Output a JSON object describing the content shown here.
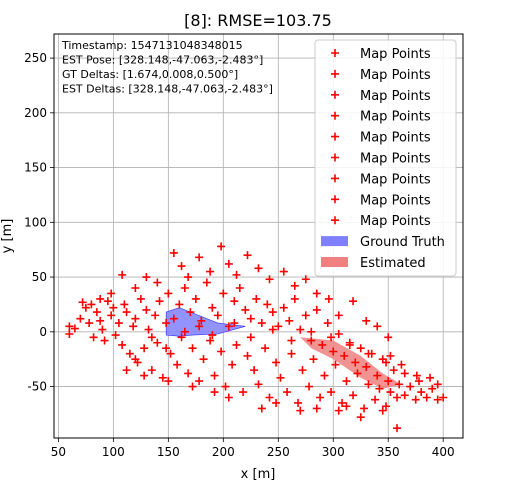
{
  "chart_data": {
    "type": "scatter",
    "title": "[8]: RMSE=103.75",
    "xlabel": "x [m]",
    "ylabel": "y [m]",
    "xlim": [
      46,
      418
    ],
    "ylim": [
      -97,
      272
    ],
    "xticks": [
      50,
      100,
      150,
      200,
      250,
      300,
      350,
      400
    ],
    "yticks": [
      -50,
      0,
      50,
      100,
      150,
      200,
      250
    ],
    "grid": true,
    "info_lines": [
      "Timestamp: 1547131048348015",
      "EST Pose: [328.148,-47.063,-2.483°]",
      "GT Deltas: [1.674,0.008,0.500°]",
      "EST Deltas: [328.148,-47.063,-2.483°]"
    ],
    "legend": {
      "position": "upper-right",
      "entries": [
        {
          "label": "Map Points",
          "marker": "+",
          "color": "#ff0000"
        },
        {
          "label": "Map Points",
          "marker": "+",
          "color": "#ff0000"
        },
        {
          "label": "Map Points",
          "marker": "+",
          "color": "#ff0000"
        },
        {
          "label": "Map Points",
          "marker": "+",
          "color": "#ff0000"
        },
        {
          "label": "Map Points",
          "marker": "+",
          "color": "#ff0000"
        },
        {
          "label": "Map Points",
          "marker": "+",
          "color": "#ff0000"
        },
        {
          "label": "Map Points",
          "marker": "+",
          "color": "#ff0000"
        },
        {
          "label": "Map Points",
          "marker": "+",
          "color": "#ff0000"
        },
        {
          "label": "Map Points",
          "marker": "+",
          "color": "#ff0000"
        },
        {
          "label": "Ground Truth",
          "marker": "patch",
          "color": "#8080ff"
        },
        {
          "label": "Estimated",
          "marker": "patch",
          "color": "#f08080"
        }
      ]
    },
    "series": [
      {
        "name": "Map Points",
        "color": "#ff0000",
        "points": [
          [
            60,
            5
          ],
          [
            65,
            3
          ],
          [
            70,
            12
          ],
          [
            72,
            27
          ],
          [
            75,
            22
          ],
          [
            78,
            8
          ],
          [
            80,
            25
          ],
          [
            82,
            -5
          ],
          [
            85,
            18
          ],
          [
            88,
            10
          ],
          [
            90,
            2
          ],
          [
            92,
            -8
          ],
          [
            95,
            28
          ],
          [
            98,
            15
          ],
          [
            100,
            22
          ],
          [
            102,
            -3
          ],
          [
            105,
            8
          ],
          [
            108,
            -12
          ],
          [
            110,
            25
          ],
          [
            112,
            18
          ],
          [
            115,
            -20
          ],
          [
            118,
            5
          ],
          [
            120,
            12
          ],
          [
            122,
            -28
          ],
          [
            125,
            30
          ],
          [
            128,
            -15
          ],
          [
            130,
            20
          ],
          [
            132,
            2
          ],
          [
            135,
            -35
          ],
          [
            138,
            15
          ],
          [
            140,
            -10
          ],
          [
            142,
            28
          ],
          [
            145,
            -42
          ],
          [
            148,
            8
          ],
          [
            150,
            35
          ],
          [
            152,
            -20
          ],
          [
            155,
            12
          ],
          [
            158,
            -30
          ],
          [
            160,
            25
          ],
          [
            162,
            -5
          ],
          [
            165,
            40
          ],
          [
            168,
            -38
          ],
          [
            170,
            18
          ],
          [
            172,
            -15
          ],
          [
            175,
            30
          ],
          [
            178,
            -45
          ],
          [
            180,
            10
          ],
          [
            182,
            -25
          ],
          [
            185,
            45
          ],
          [
            188,
            -8
          ],
          [
            190,
            22
          ],
          [
            192,
            -40
          ],
          [
            195,
            15
          ],
          [
            198,
            -18
          ],
          [
            200,
            35
          ],
          [
            202,
            -50
          ],
          [
            205,
            5
          ],
          [
            208,
            -30
          ],
          [
            210,
            28
          ],
          [
            212,
            -12
          ],
          [
            215,
            40
          ],
          [
            218,
            -55
          ],
          [
            220,
            20
          ],
          [
            222,
            -22
          ],
          [
            225,
            12
          ],
          [
            228,
            -35
          ],
          [
            230,
            30
          ],
          [
            232,
            -48
          ],
          [
            235,
            8
          ],
          [
            238,
            -15
          ],
          [
            240,
            25
          ],
          [
            242,
            -60
          ],
          [
            245,
            18
          ],
          [
            248,
            -28
          ],
          [
            250,
            5
          ],
          [
            252,
            -42
          ],
          [
            255,
            22
          ],
          [
            258,
            -55
          ],
          [
            260,
            10
          ],
          [
            262,
            -20
          ],
          [
            265,
            30
          ],
          [
            268,
            -65
          ],
          [
            270,
            2
          ],
          [
            272,
            -35
          ],
          [
            275,
            15
          ],
          [
            278,
            -50
          ],
          [
            280,
            -8
          ],
          [
            282,
            -25
          ],
          [
            285,
            20
          ],
          [
            288,
            -60
          ],
          [
            290,
            -12
          ],
          [
            292,
            -40
          ],
          [
            295,
            8
          ],
          [
            298,
            -55
          ],
          [
            300,
            -18
          ],
          [
            302,
            -30
          ],
          [
            305,
            -2
          ],
          [
            308,
            -65
          ],
          [
            310,
            -22
          ],
          [
            312,
            -45
          ],
          [
            315,
            -10
          ],
          [
            318,
            -58
          ],
          [
            320,
            -28
          ],
          [
            322,
            -38
          ],
          [
            325,
            -15
          ],
          [
            328,
            -70
          ],
          [
            330,
            -32
          ],
          [
            332,
            -48
          ],
          [
            335,
            -20
          ],
          [
            338,
            -62
          ],
          [
            340,
            -40
          ],
          [
            342,
            -52
          ],
          [
            345,
            -25
          ],
          [
            348,
            -68
          ],
          [
            350,
            -45
          ],
          [
            352,
            -55
          ],
          [
            355,
            -35
          ],
          [
            358,
            -60
          ],
          [
            360,
            -48
          ],
          [
            365,
            -58
          ],
          [
            370,
            -50
          ],
          [
            375,
            -62
          ],
          [
            380,
            -55
          ],
          [
            385,
            -60
          ],
          [
            390,
            -52
          ],
          [
            395,
            -62
          ],
          [
            400,
            -60
          ],
          [
            395,
            -48
          ],
          [
            388,
            -42
          ],
          [
            376,
            -40
          ],
          [
            362,
            -30
          ],
          [
            352,
            -22
          ],
          [
            155,
            72
          ],
          [
            162,
            60
          ],
          [
            168,
            50
          ],
          [
            178,
            68
          ],
          [
            188,
            55
          ],
          [
            198,
            78
          ],
          [
            205,
            62
          ],
          [
            212,
            52
          ],
          [
            222,
            70
          ],
          [
            232,
            58
          ],
          [
            242,
            48
          ],
          [
            255,
            55
          ],
          [
            265,
            42
          ],
          [
            275,
            48
          ],
          [
            285,
            35
          ],
          [
            296,
            30
          ],
          [
            305,
            15
          ],
          [
            318,
            28
          ],
          [
            330,
            10
          ],
          [
            340,
            5
          ],
          [
            350,
            -5
          ],
          [
            305,
            -72
          ],
          [
            325,
            -78
          ],
          [
            345,
            -72
          ],
          [
            358,
            -88
          ],
          [
            312,
            -68
          ],
          [
            285,
            -70
          ],
          [
            270,
            -72
          ],
          [
            248,
            -65
          ],
          [
            235,
            -70
          ],
          [
            205,
            -60
          ],
          [
            192,
            -55
          ],
          [
            172,
            -50
          ],
          [
            150,
            -45
          ],
          [
            128,
            -40
          ],
          [
            112,
            -35
          ],
          [
            140,
            45
          ],
          [
            130,
            50
          ],
          [
            120,
            40
          ],
          [
            108,
            52
          ],
          [
            98,
            35
          ],
          [
            88,
            30
          ],
          [
            120,
            -25
          ],
          [
            135,
            -5
          ],
          [
            148,
            -15
          ],
          [
            165,
            0
          ],
          [
            178,
            5
          ],
          [
            190,
            -3
          ],
          [
            210,
            8
          ],
          [
            225,
            -5
          ],
          [
            245,
            2
          ],
          [
            262,
            -8
          ],
          [
            280,
            0
          ],
          [
            298,
            -5
          ],
          [
            315,
            -12
          ],
          [
            332,
            -20
          ],
          [
            348,
            -28
          ],
          [
            365,
            -38
          ],
          [
            378,
            -45
          ],
          [
            60,
            -2
          ]
        ]
      }
    ],
    "ground_truth": {
      "color": "#8080ff",
      "outline": [
        [
          148,
          18
        ],
        [
          160,
          22
        ],
        [
          175,
          16
        ],
        [
          195,
          8
        ],
        [
          220,
          5
        ],
        [
          195,
          -2
        ],
        [
          172,
          -3
        ],
        [
          160,
          -4
        ],
        [
          148,
          -3
        ]
      ]
    },
    "estimated": {
      "color": "#f08080",
      "outline": [
        [
          270,
          -5
        ],
        [
          300,
          -8
        ],
        [
          325,
          -22
        ],
        [
          345,
          -38
        ],
        [
          362,
          -48
        ],
        [
          345,
          -52
        ],
        [
          325,
          -42
        ],
        [
          300,
          -25
        ],
        [
          280,
          -15
        ]
      ]
    }
  }
}
